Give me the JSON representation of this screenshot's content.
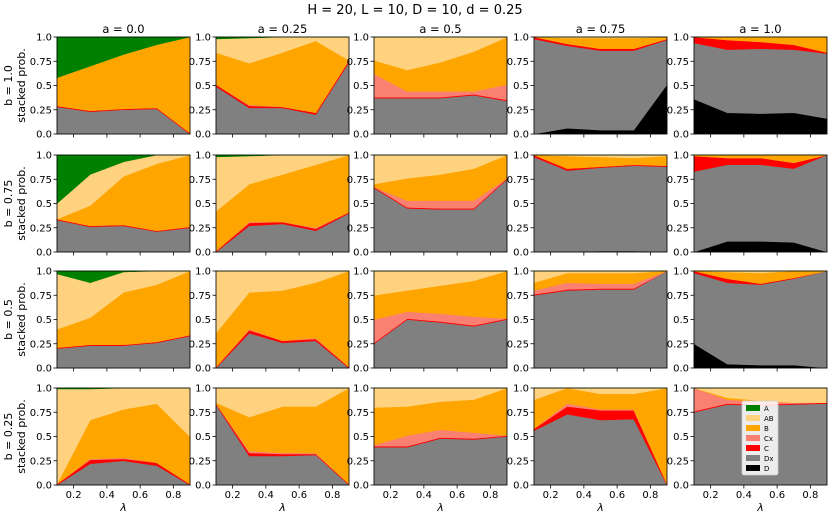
{
  "chart_data": {
    "type": "area",
    "suptitle": "H = 20, L = 10,     D = 10, d = 0.25",
    "col_titles": [
      "a = 0.0",
      "a = 0.25",
      "a = 0.5",
      "a = 0.75",
      "a = 1.0"
    ],
    "row_titles": [
      "b = 1.0",
      "b = 0.75",
      "b = 0.5",
      "b = 0.25"
    ],
    "ylabel": "stacked prob.",
    "xlabel": "λ",
    "x": [
      0.1,
      0.3,
      0.5,
      0.7,
      0.9
    ],
    "xlim": [
      0.1,
      0.9
    ],
    "ylim": [
      0.0,
      1.0
    ],
    "xticks": [
      0.2,
      0.4,
      0.6,
      0.8
    ],
    "xtick_labels": [
      "0.2",
      "0.4",
      "0.6",
      "0.8"
    ],
    "yticks": [
      0.0,
      0.25,
      0.5,
      0.75,
      1.0
    ],
    "ytick_labels": [
      "0.0",
      "0.25",
      "0.5",
      "0.75",
      "1.0"
    ],
    "categories": [
      "D",
      "Dx",
      "C",
      "Cx",
      "B",
      "AB",
      "A"
    ],
    "legend": {
      "placement": "lower-center of panel b = 0.25, a = 1.0",
      "entries": [
        {
          "label": "A",
          "color": "#008000"
        },
        {
          "label": "AB",
          "color": "#ffd27f"
        },
        {
          "label": "B",
          "color": "#ffa500"
        },
        {
          "label": "Cx",
          "color": "#fa8072"
        },
        {
          "label": "C",
          "color": "#ff0000"
        },
        {
          "label": "Dx",
          "color": "#808080"
        },
        {
          "label": "D",
          "color": "#000000"
        }
      ]
    },
    "note": "Each panel stacks probabilities bottom-to-top in order D, Dx, C, Cx, B, AB, A; values are cumulative tops of each band.",
    "panels": [
      {
        "row": 0,
        "col": 0,
        "D": [
          0,
          0,
          0,
          0,
          0
        ],
        "Dx": [
          0.28,
          0.23,
          0.25,
          0.26,
          0
        ],
        "C": [
          0.29,
          0.24,
          0.26,
          0.27,
          0.01
        ],
        "Cx": [
          0.29,
          0.24,
          0.26,
          0.27,
          0.01
        ],
        "B": [
          0.58,
          0.7,
          0.82,
          0.92,
          1.0
        ],
        "AB": [
          0.58,
          0.7,
          0.82,
          0.92,
          1.0
        ],
        "A": [
          1,
          1,
          1,
          1,
          1
        ]
      },
      {
        "row": 0,
        "col": 1,
        "D": [
          0,
          0,
          0,
          0,
          0
        ],
        "Dx": [
          0.49,
          0.27,
          0.27,
          0.2,
          0.74
        ],
        "C": [
          0.51,
          0.29,
          0.28,
          0.22,
          0.76
        ],
        "Cx": [
          0.51,
          0.3,
          0.28,
          0.22,
          0.76
        ],
        "B": [
          0.84,
          0.73,
          0.84,
          0.96,
          0.76
        ],
        "AB": [
          0.98,
          0.99,
          1,
          1,
          1
        ],
        "A": [
          1,
          1,
          1,
          1,
          1
        ]
      },
      {
        "row": 0,
        "col": 2,
        "D": [
          0,
          0,
          0,
          0,
          0
        ],
        "Dx": [
          0.37,
          0.37,
          0.37,
          0.4,
          0.34
        ],
        "C": [
          0.38,
          0.38,
          0.38,
          0.41,
          0.35
        ],
        "Cx": [
          0.62,
          0.44,
          0.44,
          0.44,
          0.51
        ],
        "B": [
          0.76,
          0.66,
          0.74,
          0.85,
          1.0
        ],
        "AB": [
          1,
          1,
          1,
          1,
          1
        ],
        "A": [
          1,
          1,
          1,
          1,
          1
        ]
      },
      {
        "row": 0,
        "col": 3,
        "D": [
          0,
          0.06,
          0.04,
          0.04,
          0.51
        ],
        "Dx": [
          0.98,
          0.91,
          0.86,
          0.86,
          0.97
        ],
        "C": [
          1.0,
          0.93,
          0.88,
          0.88,
          0.98
        ],
        "Cx": [
          1.0,
          0.93,
          0.88,
          0.88,
          0.98
        ],
        "B": [
          1,
          0.99,
          0.99,
          0.99,
          1.0
        ],
        "AB": [
          1,
          1,
          1,
          1,
          1
        ],
        "A": [
          1,
          1,
          1,
          1,
          1
        ]
      },
      {
        "row": 0,
        "col": 4,
        "D": [
          0.36,
          0.22,
          0.21,
          0.22,
          0.16
        ],
        "Dx": [
          0.94,
          0.87,
          0.88,
          0.87,
          0.83
        ],
        "C": [
          1,
          0.97,
          0.95,
          0.92,
          0.84
        ],
        "Cx": [
          1,
          0.97,
          0.95,
          0.92,
          0.84
        ],
        "B": [
          1,
          1,
          1,
          1,
          1
        ],
        "AB": [
          1,
          1,
          1,
          1,
          1
        ],
        "A": [
          1,
          1,
          1,
          1,
          1
        ]
      },
      {
        "row": 1,
        "col": 0,
        "D": [
          0,
          0,
          0,
          0,
          0
        ],
        "Dx": [
          0.33,
          0.26,
          0.27,
          0.21,
          0.25
        ],
        "C": [
          0.34,
          0.27,
          0.28,
          0.22,
          0.26
        ],
        "Cx": [
          0.34,
          0.27,
          0.28,
          0.22,
          0.26
        ],
        "B": [
          0.34,
          0.48,
          0.78,
          0.91,
          1.0
        ],
        "AB": [
          0.5,
          0.8,
          0.93,
          1,
          1
        ],
        "A": [
          1,
          1,
          1,
          1,
          1
        ]
      },
      {
        "row": 1,
        "col": 1,
        "D": [
          0,
          0,
          0,
          0,
          0
        ],
        "Dx": [
          0,
          0.27,
          0.29,
          0.22,
          0.4
        ],
        "C": [
          0.01,
          0.3,
          0.31,
          0.24,
          0.41
        ],
        "Cx": [
          0.01,
          0.31,
          0.31,
          0.25,
          0.41
        ],
        "B": [
          0.42,
          0.7,
          0.8,
          0.9,
          1.0
        ],
        "AB": [
          0.98,
          0.99,
          1,
          1,
          1
        ],
        "A": [
          1,
          1,
          1,
          1,
          1
        ]
      },
      {
        "row": 1,
        "col": 2,
        "D": [
          0,
          0,
          0,
          0,
          0
        ],
        "Dx": [
          0.66,
          0.45,
          0.44,
          0.44,
          0.75
        ],
        "C": [
          0.67,
          0.46,
          0.45,
          0.45,
          0.76
        ],
        "Cx": [
          0.67,
          0.53,
          0.53,
          0.53,
          0.76
        ],
        "B": [
          0.7,
          0.76,
          0.8,
          0.86,
          1.0
        ],
        "AB": [
          1,
          1,
          1,
          1,
          1
        ],
        "A": [
          1,
          1,
          1,
          1,
          1
        ]
      },
      {
        "row": 1,
        "col": 3,
        "D": [
          0,
          0,
          0.01,
          0.01,
          0
        ],
        "Dx": [
          0.98,
          0.84,
          0.87,
          0.89,
          0.88
        ],
        "C": [
          1.0,
          0.86,
          0.88,
          0.9,
          0.89
        ],
        "Cx": [
          1.0,
          0.86,
          0.88,
          0.9,
          0.89
        ],
        "B": [
          1,
          0.99,
          0.98,
          0.97,
          0.99
        ],
        "AB": [
          1,
          1,
          1,
          1,
          1
        ],
        "A": [
          1,
          1,
          1,
          1,
          1
        ]
      },
      {
        "row": 1,
        "col": 4,
        "D": [
          0,
          0.11,
          0.11,
          0.1,
          0
        ],
        "Dx": [
          0.83,
          0.9,
          0.9,
          0.86,
          1.0
        ],
        "C": [
          0.99,
          0.97,
          0.97,
          0.92,
          1.0
        ],
        "Cx": [
          0.99,
          0.97,
          0.97,
          0.92,
          1.0
        ],
        "B": [
          1,
          1,
          1,
          1,
          1
        ],
        "AB": [
          1,
          1,
          1,
          1,
          1
        ],
        "A": [
          1,
          1,
          1,
          1,
          1
        ]
      },
      {
        "row": 2,
        "col": 0,
        "D": [
          0,
          0,
          0,
          0,
          0
        ],
        "Dx": [
          0.2,
          0.23,
          0.23,
          0.26,
          0.33
        ],
        "C": [
          0.21,
          0.24,
          0.24,
          0.27,
          0.34
        ],
        "Cx": [
          0.21,
          0.24,
          0.24,
          0.27,
          0.34
        ],
        "B": [
          0.4,
          0.52,
          0.78,
          0.86,
          1.0
        ],
        "AB": [
          0.97,
          0.88,
          0.99,
          1,
          1
        ],
        "A": [
          1,
          1,
          1,
          1,
          1
        ]
      },
      {
        "row": 2,
        "col": 1,
        "D": [
          0,
          0,
          0,
          0,
          0
        ],
        "Dx": [
          0,
          0.36,
          0.26,
          0.28,
          0
        ],
        "C": [
          0.01,
          0.39,
          0.28,
          0.3,
          0.01
        ],
        "Cx": [
          0.01,
          0.4,
          0.28,
          0.31,
          0.01
        ],
        "B": [
          0.36,
          0.78,
          0.8,
          0.88,
          1.0
        ],
        "AB": [
          1,
          1,
          1,
          1,
          1
        ],
        "A": [
          1,
          1,
          1,
          1,
          1
        ]
      },
      {
        "row": 2,
        "col": 2,
        "D": [
          0,
          0,
          0,
          0,
          0
        ],
        "Dx": [
          0.25,
          0.5,
          0.47,
          0.43,
          0.5
        ],
        "C": [
          0.26,
          0.51,
          0.48,
          0.44,
          0.51
        ],
        "Cx": [
          0.5,
          0.58,
          0.56,
          0.53,
          0.51
        ],
        "B": [
          0.75,
          0.8,
          0.85,
          0.9,
          1.0
        ],
        "AB": [
          1,
          1,
          1,
          1,
          1
        ],
        "A": [
          1,
          1,
          1,
          1,
          1
        ]
      },
      {
        "row": 2,
        "col": 3,
        "D": [
          0,
          0,
          0,
          0,
          0
        ],
        "Dx": [
          0.75,
          0.8,
          0.81,
          0.81,
          1.0
        ],
        "C": [
          0.76,
          0.81,
          0.82,
          0.82,
          1.0
        ],
        "Cx": [
          0.8,
          0.88,
          0.87,
          0.87,
          1.0
        ],
        "B": [
          0.88,
          0.98,
          0.98,
          0.98,
          1.0
        ],
        "AB": [
          1,
          1,
          1,
          1,
          1
        ],
        "A": [
          1,
          1,
          1,
          1,
          1
        ]
      },
      {
        "row": 2,
        "col": 4,
        "D": [
          0.25,
          0.04,
          0.03,
          0.03,
          0
        ],
        "Dx": [
          0.98,
          0.88,
          0.86,
          0.92,
          1.0
        ],
        "C": [
          1.0,
          0.92,
          0.87,
          0.93,
          1.0
        ],
        "Cx": [
          1.0,
          0.92,
          0.87,
          0.93,
          1.0
        ],
        "B": [
          1,
          0.99,
          0.98,
          1,
          1
        ],
        "AB": [
          1,
          1,
          1,
          1,
          1
        ],
        "A": [
          1,
          1,
          1,
          1,
          1
        ]
      },
      {
        "row": 3,
        "col": 0,
        "D": [
          0,
          0,
          0,
          0,
          0
        ],
        "Dx": [
          0,
          0.22,
          0.25,
          0.2,
          0
        ],
        "C": [
          0.01,
          0.26,
          0.27,
          0.23,
          0.01
        ],
        "Cx": [
          0.01,
          0.27,
          0.28,
          0.23,
          0.01
        ],
        "B": [
          0.01,
          0.67,
          0.78,
          0.84,
          0.5
        ],
        "AB": [
          0.99,
          0.99,
          1,
          1,
          1
        ],
        "A": [
          1,
          1,
          1,
          1,
          1
        ]
      },
      {
        "row": 3,
        "col": 1,
        "D": [
          0,
          0,
          0,
          0,
          0
        ],
        "Dx": [
          0.83,
          0.3,
          0.3,
          0.31,
          0
        ],
        "C": [
          0.84,
          0.33,
          0.32,
          0.32,
          0.01
        ],
        "Cx": [
          0.84,
          0.35,
          0.33,
          0.33,
          0.01
        ],
        "B": [
          0.85,
          0.7,
          0.81,
          0.81,
          1.0
        ],
        "AB": [
          1,
          1,
          1,
          1,
          1
        ],
        "A": [
          1,
          1,
          1,
          1,
          1
        ]
      },
      {
        "row": 3,
        "col": 2,
        "D": [
          0,
          0,
          0,
          0,
          0
        ],
        "Dx": [
          0.39,
          0.39,
          0.48,
          0.47,
          0.5
        ],
        "C": [
          0.4,
          0.4,
          0.49,
          0.48,
          0.51
        ],
        "Cx": [
          0.41,
          0.51,
          0.57,
          0.54,
          0.51
        ],
        "B": [
          0.8,
          0.81,
          0.86,
          0.88,
          1.0
        ],
        "AB": [
          1,
          1,
          1,
          1,
          1
        ],
        "A": [
          1,
          1,
          1,
          1,
          1
        ]
      },
      {
        "row": 3,
        "col": 3,
        "D": [
          0,
          0,
          0,
          0,
          0
        ],
        "Dx": [
          0.56,
          0.73,
          0.67,
          0.68,
          0
        ],
        "C": [
          0.58,
          0.81,
          0.77,
          0.77,
          0.01
        ],
        "Cx": [
          0.58,
          0.84,
          0.78,
          0.78,
          0.01
        ],
        "B": [
          0.88,
          1,
          0.94,
          0.94,
          1.0
        ],
        "AB": [
          1,
          1,
          1,
          1,
          1
        ],
        "A": [
          1,
          1,
          1,
          1,
          1
        ]
      },
      {
        "row": 3,
        "col": 4,
        "D": [
          0,
          0,
          0,
          0,
          0
        ],
        "Dx": [
          0.75,
          0.83,
          0.82,
          0.83,
          0.84
        ],
        "C": [
          0.76,
          0.84,
          0.83,
          0.84,
          0.85
        ],
        "Cx": [
          1.0,
          0.88,
          0.86,
          0.85,
          0.85
        ],
        "B": [
          1,
          0.9,
          0.87,
          0.85,
          0.85
        ],
        "AB": [
          1,
          1,
          1,
          1,
          1
        ],
        "A": [
          1,
          1,
          1,
          1,
          1
        ]
      }
    ]
  }
}
